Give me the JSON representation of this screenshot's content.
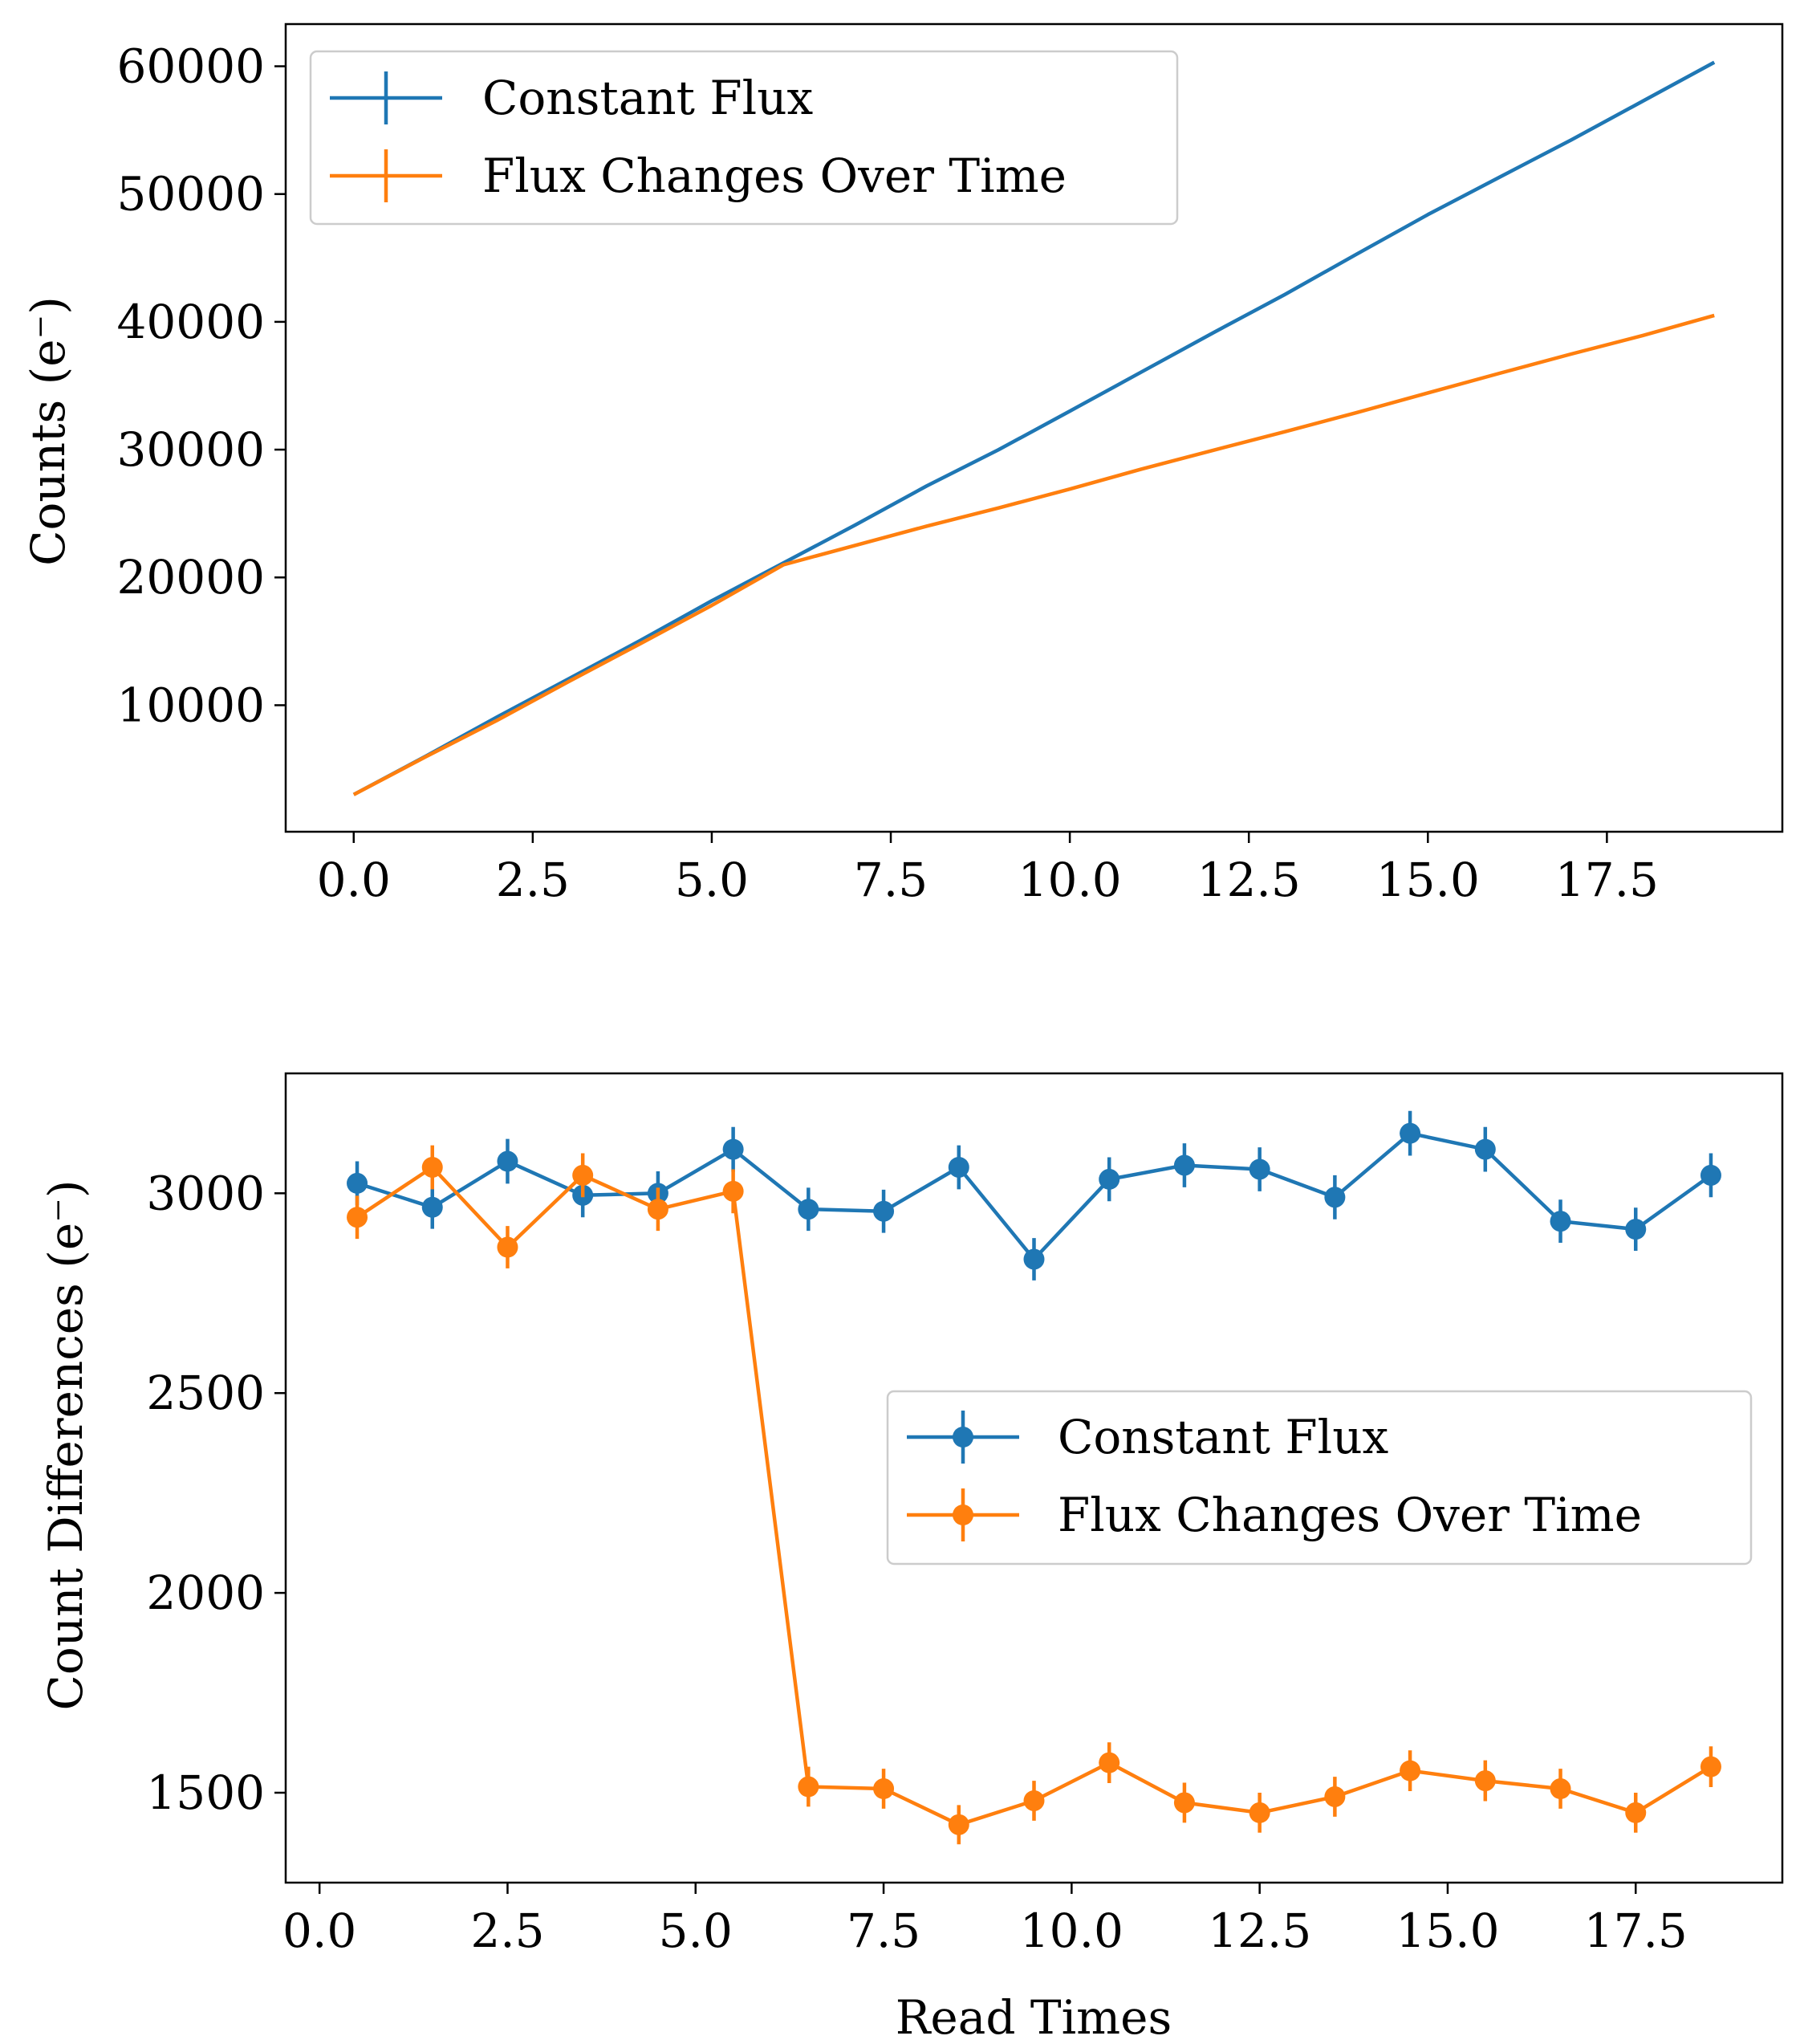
{
  "chart_data": [
    {
      "type": "line",
      "xlabel": "",
      "ylabel": "Counts (e⁻)",
      "xlim": [
        -0.95,
        19.95
      ],
      "ylim": [
        100,
        63300
      ],
      "xticks": [
        0.0,
        2.5,
        5.0,
        7.5,
        10.0,
        12.5,
        15.0,
        17.5
      ],
      "xtick_labels": [
        "0.0",
        "2.5",
        "5.0",
        "7.5",
        "10.0",
        "12.5",
        "15.0",
        "17.5"
      ],
      "yticks": [
        10000,
        20000,
        30000,
        40000,
        50000,
        60000
      ],
      "ytick_labels": [
        "10000",
        "20000",
        "30000",
        "40000",
        "50000",
        "60000"
      ],
      "legend_position": "upper-left",
      "series": [
        {
          "name": "Constant Flux",
          "color": "#1f77b4",
          "markers": false,
          "x": [
            0,
            1,
            2,
            3,
            4,
            5,
            6,
            7,
            8,
            9,
            10,
            11,
            12,
            13,
            14,
            15,
            16,
            17,
            18,
            19
          ],
          "y": [
            3010,
            5990,
            9070,
            12060,
            15060,
            18170,
            21130,
            24090,
            27150,
            29980,
            33010,
            36080,
            39140,
            42130,
            45280,
            48390,
            51320,
            54230,
            57270,
            60310
          ]
        },
        {
          "name": "Flux Changes Over Time",
          "color": "#ff7f0e",
          "markers": false,
          "x": [
            0,
            1,
            2,
            3,
            4,
            5,
            6,
            7,
            8,
            9,
            10,
            11,
            12,
            13,
            14,
            15,
            16,
            17,
            18,
            19
          ],
          "y": [
            3010,
            5950,
            8810,
            11850,
            14810,
            17810,
            20990,
            22500,
            24010,
            25430,
            26910,
            28480,
            29950,
            31400,
            32890,
            34440,
            35970,
            37480,
            38930,
            40500
          ]
        }
      ]
    },
    {
      "type": "line",
      "xlabel": "Read Times",
      "ylabel": "Count Differences (e⁻)",
      "xlim": [
        -0.45,
        19.45
      ],
      "ylim": [
        1275,
        3300
      ],
      "xticks": [
        0.0,
        2.5,
        5.0,
        7.5,
        10.0,
        12.5,
        15.0,
        17.5
      ],
      "xtick_labels": [
        "0.0",
        "2.5",
        "5.0",
        "7.5",
        "10.0",
        "12.5",
        "15.0",
        "17.5"
      ],
      "yticks": [
        1500,
        2000,
        2500,
        3000
      ],
      "ytick_labels": [
        "1500",
        "2000",
        "2500",
        "3000"
      ],
      "legend_position": "center-right",
      "series": [
        {
          "name": "Constant Flux",
          "color": "#1f77b4",
          "markers": true,
          "x": [
            0.5,
            1.5,
            2.5,
            3.5,
            4.5,
            5.5,
            6.5,
            7.5,
            8.5,
            9.5,
            10.5,
            11.5,
            12.5,
            13.5,
            14.5,
            15.5,
            16.5,
            17.5,
            18.5
          ],
          "y": [
            3025,
            2965,
            3080,
            2995,
            3000,
            3110,
            2960,
            2955,
            3065,
            2835,
            3035,
            3070,
            3060,
            2990,
            3150,
            3110,
            2930,
            2910,
            3045
          ],
          "yerr": [
            55,
            54,
            56,
            55,
            55,
            56,
            54,
            54,
            55,
            53,
            55,
            55,
            55,
            55,
            56,
            56,
            54,
            54,
            55
          ]
        },
        {
          "name": "Flux Changes Over Time",
          "color": "#ff7f0e",
          "markers": true,
          "x": [
            0.5,
            1.5,
            2.5,
            3.5,
            4.5,
            5.5,
            6.5,
            7.5,
            8.5,
            9.5,
            10.5,
            11.5,
            12.5,
            13.5,
            14.5,
            15.5,
            16.5,
            17.5,
            18.5
          ],
          "y": [
            2940,
            3065,
            2865,
            3045,
            2960,
            3005,
            1515,
            1510,
            1420,
            1480,
            1575,
            1475,
            1450,
            1490,
            1555,
            1530,
            1510,
            1450,
            1565
          ],
          "yerr": [
            54,
            55,
            53,
            55,
            54,
            55,
            50,
            50,
            49,
            50,
            51,
            50,
            50,
            50,
            51,
            51,
            50,
            50,
            51
          ]
        }
      ]
    }
  ]
}
